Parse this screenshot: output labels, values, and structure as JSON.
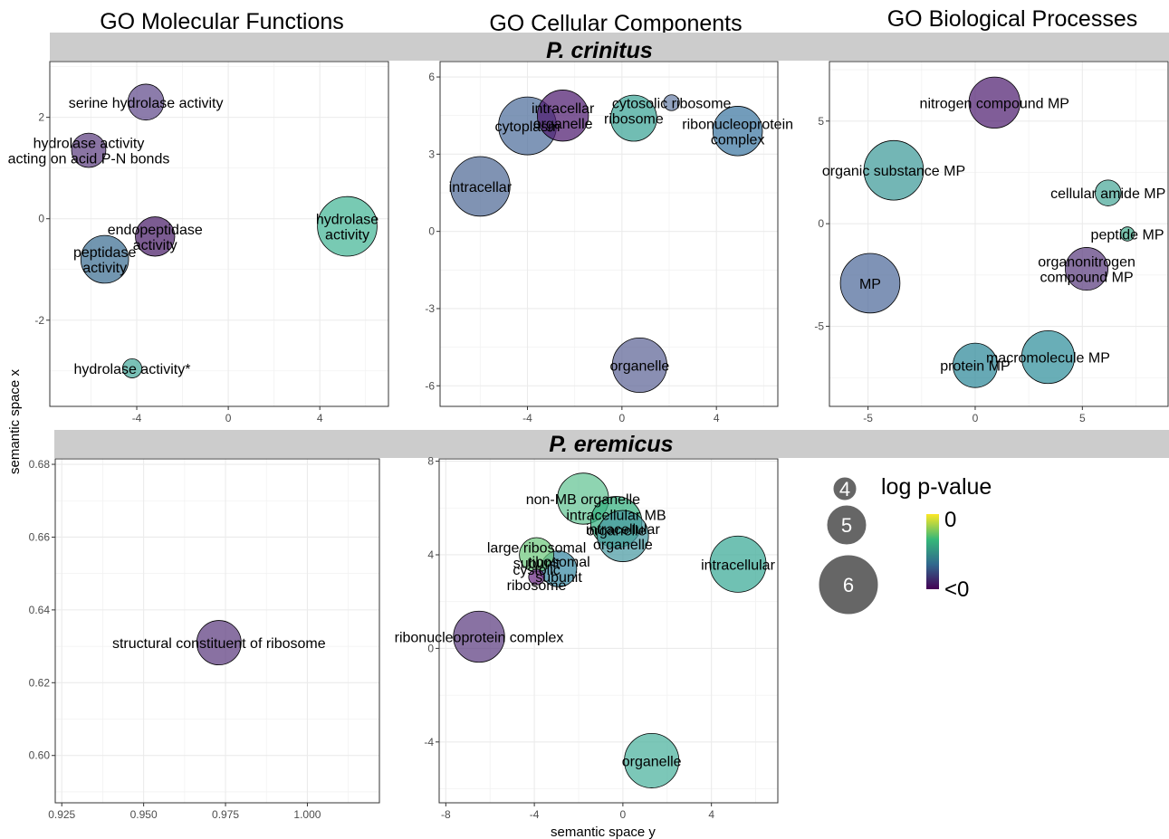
{
  "column_titles": [
    "GO Molecular Functions",
    "GO Cellular Components",
    "GO Biological Processes"
  ],
  "strips": [
    "P. crinitus",
    "P. eremicus"
  ],
  "axis_titles": {
    "y": "semantic space x",
    "x": "semantic space y"
  },
  "legend": {
    "size_title": "log p-value",
    "sizes": [
      "4",
      "5",
      "6"
    ],
    "color_top": "0",
    "color_bottom": "<0",
    "colors": {
      "low": "#440154",
      "mid1": "#31688e",
      "mid2": "#35b779",
      "high": "#fde725"
    }
  },
  "chart_data": [
    {
      "type": "scatter",
      "row": "P. crinitus",
      "column": "GO Molecular Functions",
      "xlim": [
        -7.8,
        7
      ],
      "ylim": [
        -3.7,
        3.1
      ],
      "xticks": [
        -4,
        0,
        4
      ],
      "yticks": [
        -2,
        0,
        2
      ],
      "points": [
        {
          "label": [
            "serine hydrolase activity"
          ],
          "x": -3.6,
          "y": 2.3,
          "size": 4.6,
          "color": "#604a8a"
        },
        {
          "label": [
            "hydrolase activity",
            "acting on acid P-N bonds"
          ],
          "x": -6.1,
          "y": 1.35,
          "size": 4.5,
          "color": "#5d3e80"
        },
        {
          "label": [
            "endopeptidase",
            "activity"
          ],
          "x": -3.2,
          "y": -0.35,
          "size": 4.8,
          "color": "#4a1d68"
        },
        {
          "label": [
            "peptidase",
            "activity"
          ],
          "x": -5.4,
          "y": -0.8,
          "size": 5.3,
          "color": "#3b6d92"
        },
        {
          "label": [
            "hydrolase",
            "activity"
          ],
          "x": 5.2,
          "y": -0.15,
          "size": 6.0,
          "color": "#44b596"
        },
        {
          "label": [
            "hydrolase activity*"
          ],
          "x": -4.2,
          "y": -2.95,
          "size": 3.6,
          "color": "#47a99b"
        }
      ]
    },
    {
      "type": "scatter",
      "row": "P. crinitus",
      "column": "GO Cellular Components",
      "xlim": [
        -7.7,
        6.6
      ],
      "ylim": [
        -6.8,
        6.6
      ],
      "xticks": [
        -4,
        0,
        4
      ],
      "yticks": [
        -6,
        -3,
        0,
        3,
        6
      ],
      "points": [
        {
          "label": [
            "intracellar",
            "organelle"
          ],
          "x": -2.5,
          "y": 4.5,
          "size": 5.5,
          "color": "#4e1a6f"
        },
        {
          "label": [
            "cytosolic ribosome"
          ],
          "x": 2.1,
          "y": 5.0,
          "size": 3.4,
          "color": "#6a7fa8"
        },
        {
          "label": [
            "cytoplasm"
          ],
          "x": -4.0,
          "y": 4.1,
          "size": 5.9,
          "color": "#4e6e9b"
        },
        {
          "label": [
            "ribosome"
          ],
          "x": 0.5,
          "y": 4.4,
          "size": 5.2,
          "color": "#3aa495"
        },
        {
          "label": [
            "ribonucleoprotein",
            "complex"
          ],
          "x": 4.9,
          "y": 3.9,
          "size": 5.4,
          "color": "#3b76a1"
        },
        {
          "label": [
            "intracellar"
          ],
          "x": -6.0,
          "y": 1.75,
          "size": 6.0,
          "color": "#4f6a95"
        },
        {
          "label": [
            "organelle"
          ],
          "x": 0.75,
          "y": -5.2,
          "size": 5.7,
          "color": "#5d6496"
        }
      ]
    },
    {
      "type": "scatter",
      "row": "P. crinitus",
      "column": "GO Biological Processes",
      "xlim": [
        -6.8,
        9
      ],
      "ylim": [
        -8.9,
        7.9
      ],
      "xticks": [
        -5,
        0,
        5
      ],
      "yticks": [
        -5,
        0,
        5
      ],
      "points": [
        {
          "label": [
            "nitrogen compound MP"
          ],
          "x": 0.9,
          "y": 5.9,
          "size": 5.5,
          "color": "#4f1f70"
        },
        {
          "label": [
            "organic substance MP"
          ],
          "x": -3.8,
          "y": 2.6,
          "size": 6.0,
          "color": "#3d9a99"
        },
        {
          "label": [
            "cellular amide MP"
          ],
          "x": 6.2,
          "y": 1.5,
          "size": 4.0,
          "color": "#4aa899"
        },
        {
          "label": [
            "peptide MP"
          ],
          "x": 7.1,
          "y": -0.5,
          "size": 3.3,
          "color": "#45ad8f"
        },
        {
          "label": [
            "organonitrogen",
            "compound MP"
          ],
          "x": 5.2,
          "y": -2.2,
          "size": 5.0,
          "color": "#5a3c7e"
        },
        {
          "label": [
            "MP"
          ],
          "x": -4.9,
          "y": -2.9,
          "size": 6.0,
          "color": "#4e6a9a"
        },
        {
          "label": [
            "protein MP"
          ],
          "x": 0.0,
          "y": -6.9,
          "size": 5.1,
          "color": "#2d8898"
        },
        {
          "label": [
            "macromolecule MP"
          ],
          "x": 3.4,
          "y": -6.5,
          "size": 5.6,
          "color": "#2f8f9b"
        }
      ]
    },
    {
      "type": "scatter",
      "row": "P. eremicus",
      "column": "GO Molecular Functions",
      "xlim": [
        0.923,
        1.022
      ],
      "ylim": [
        0.587,
        0.6815
      ],
      "xticks": [
        0.925,
        0.95,
        0.975,
        1.0
      ],
      "yticks": [
        0.6,
        0.62,
        0.64,
        0.66,
        0.68
      ],
      "tick_labels_x": [
        "0.925",
        "0.950",
        "0.975",
        "1.000"
      ],
      "tick_labels_y": [
        "0.60",
        "0.62",
        "0.64",
        "0.66",
        "0.68"
      ],
      "points": [
        {
          "label": [
            "structural constituent of ribosome"
          ],
          "x": 0.973,
          "y": 0.631,
          "size": 5.1,
          "color": "#5b3a7e"
        }
      ]
    },
    {
      "type": "scatter",
      "row": "P. eremicus",
      "column": "GO Cellular Components",
      "xlim": [
        -8.3,
        7
      ],
      "ylim": [
        -6.6,
        8.1
      ],
      "xticks": [
        -8,
        -4,
        0,
        4
      ],
      "yticks": [
        -4,
        0,
        4,
        8
      ],
      "points": [
        {
          "label": [
            "non-MB organelle"
          ],
          "x": -1.8,
          "y": 6.4,
          "size": 5.5,
          "color": "#62c493"
        },
        {
          "label": [
            "intracellular MB",
            "organelle"
          ],
          "x": -0.3,
          "y": 5.4,
          "size": 5.5,
          "color": "#33b07e"
        },
        {
          "label": [
            "intracellular",
            "organelle"
          ],
          "x": 0.0,
          "y": 4.8,
          "size": 5.5,
          "color": "#4a9aa2"
        },
        {
          "label": [
            "large ribosomal",
            "subunit"
          ],
          "x": -3.9,
          "y": 4.0,
          "size": 4.5,
          "color": "#6fc97e"
        },
        {
          "label": [
            "ribosomal",
            "subunit"
          ],
          "x": -2.9,
          "y": 3.4,
          "size": 4.6,
          "color": "#3888a2"
        },
        {
          "label": [
            "cystolic",
            "ribosome"
          ],
          "x": -3.9,
          "y": 3.05,
          "size": 3.4,
          "color": "#6b2a84"
        },
        {
          "label": [
            "intracellular"
          ],
          "x": 5.2,
          "y": 3.6,
          "size": 5.8,
          "color": "#39a996"
        },
        {
          "label": [
            "ribonucleoprotein complex"
          ],
          "x": -6.5,
          "y": 0.5,
          "size": 5.5,
          "color": "#5c3b80"
        },
        {
          "label": [
            "organelle"
          ],
          "x": 1.3,
          "y": -4.8,
          "size": 5.7,
          "color": "#4ab29c"
        }
      ]
    }
  ]
}
